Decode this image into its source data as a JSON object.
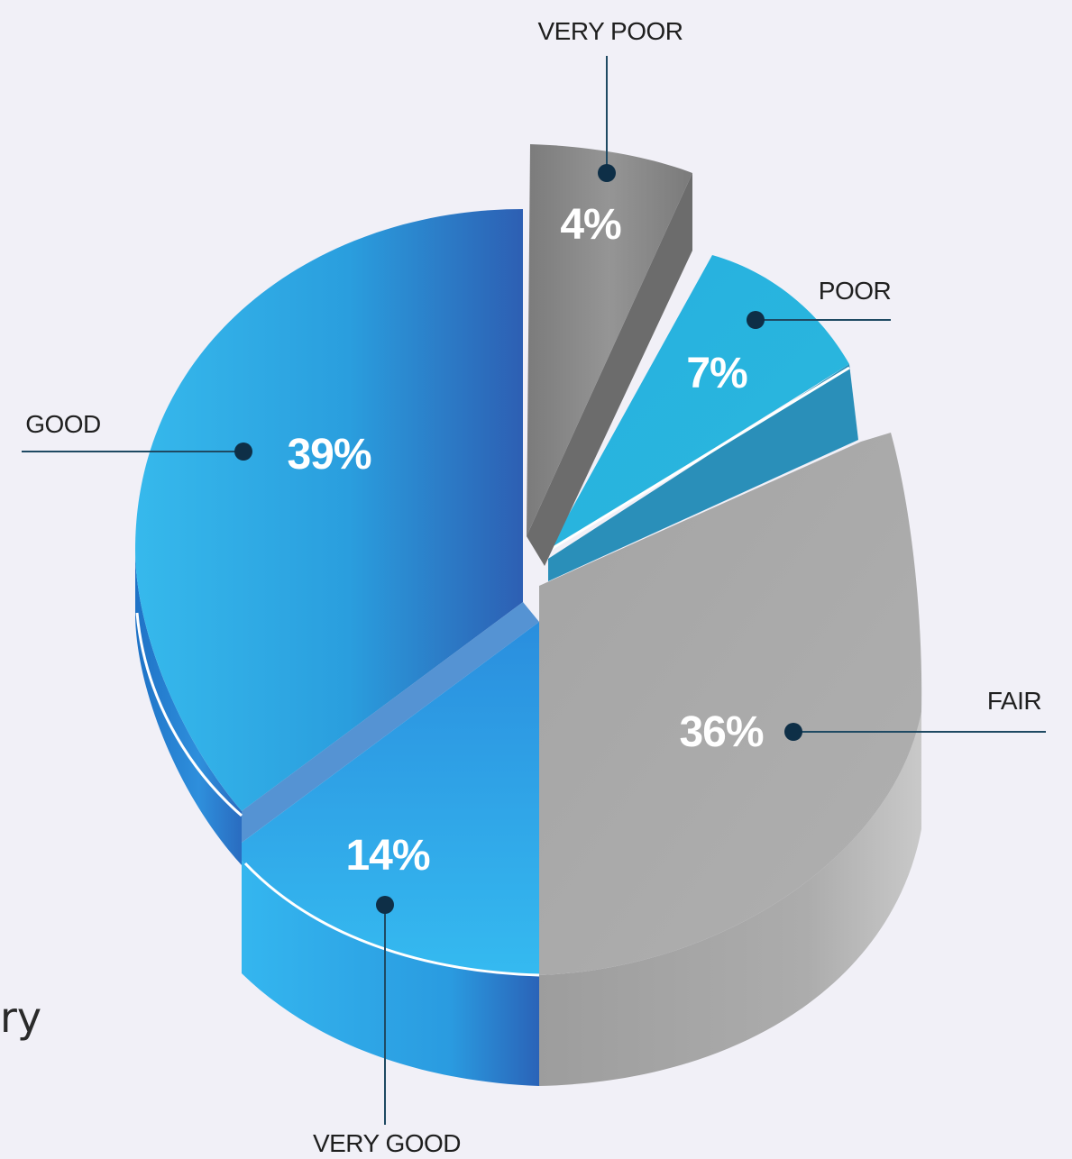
{
  "chart_data": {
    "type": "pie",
    "title": "",
    "slices": [
      {
        "label": "VERY POOR",
        "value": 4,
        "value_label": "4%",
        "color": "#8a8a8a"
      },
      {
        "label": "POOR",
        "value": 7,
        "value_label": "7%",
        "color": "#2ab3dd"
      },
      {
        "label": "FAIR",
        "value": 36,
        "value_label": "36%",
        "color": "#a8a8a8"
      },
      {
        "label": "VERY GOOD",
        "value": 14,
        "value_label": "14%",
        "color": "#2aaee6"
      },
      {
        "label": "GOOD",
        "value": 39,
        "value_label": "39%",
        "color": "#2f9fe0"
      }
    ],
    "style": "3d-exploded",
    "legend": "none"
  },
  "page": {
    "cut_off_text": "ry"
  },
  "colors": {
    "background": "#f1f0f7",
    "callout_line": "#1f4a63",
    "callout_dot": "#0e2f47"
  }
}
